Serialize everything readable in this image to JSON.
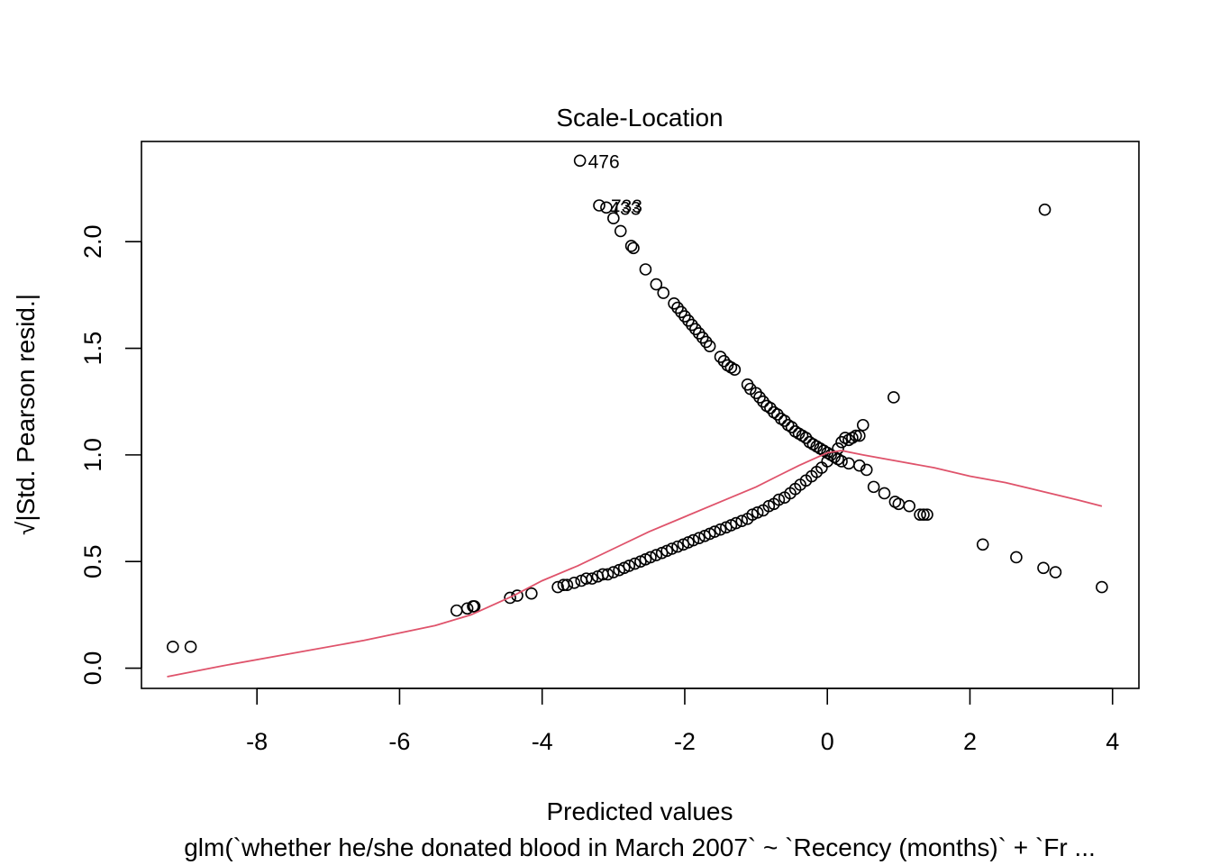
{
  "chart_data": {
    "type": "scatter",
    "title": "Scale-Location",
    "xlabel": "Predicted values",
    "ylabel": "√|Std. Pearson resid.|",
    "sub_caption": "glm(`whether he/she donated blood in March 2007` ~ `Recency (months)` + `Fr ...",
    "xlim": [
      -9.62,
      4.37
    ],
    "ylim": [
      -0.095,
      2.47
    ],
    "x_ticks": [
      -8,
      -6,
      -4,
      -2,
      0,
      2,
      4
    ],
    "x_tick_labels": [
      "-8",
      "-6",
      "-4",
      "-2",
      "0",
      "2",
      "4"
    ],
    "y_ticks": [
      0.0,
      0.5,
      1.0,
      1.5,
      2.0
    ],
    "y_tick_labels": [
      "0.0",
      "0.5",
      "1.0",
      "1.5",
      "2.0"
    ],
    "grid": false,
    "smooth_color": "#DF536B",
    "point_labels": [
      {
        "text": "476",
        "x": -3.47,
        "y": 2.38
      },
      {
        "text": "433",
        "x": -3.17,
        "y": 2.16
      },
      {
        "text": "733",
        "x": -3.15,
        "y": 2.17
      }
    ],
    "series": [
      {
        "points": [
          [
            -9.18,
            0.1
          ],
          [
            -8.93,
            0.1
          ],
          [
            -5.2,
            0.27
          ],
          [
            -5.05,
            0.28
          ],
          [
            -4.97,
            0.29
          ],
          [
            -4.95,
            0.29
          ],
          [
            -4.45,
            0.33
          ],
          [
            -4.35,
            0.34
          ],
          [
            -4.15,
            0.35
          ],
          [
            -3.78,
            0.38
          ],
          [
            -3.7,
            0.39
          ],
          [
            -3.65,
            0.39
          ],
          [
            -3.55,
            0.4
          ],
          [
            -3.45,
            0.41
          ],
          [
            -3.38,
            0.42
          ],
          [
            -3.3,
            0.42
          ],
          [
            -3.22,
            0.43
          ],
          [
            -3.15,
            0.44
          ],
          [
            -3.08,
            0.44
          ],
          [
            -3.0,
            0.45
          ],
          [
            -2.92,
            0.46
          ],
          [
            -2.85,
            0.47
          ],
          [
            -2.78,
            0.48
          ],
          [
            -2.7,
            0.49
          ],
          [
            -2.62,
            0.5
          ],
          [
            -2.55,
            0.51
          ],
          [
            -2.48,
            0.52
          ],
          [
            -2.4,
            0.53
          ],
          [
            -2.32,
            0.54
          ],
          [
            -2.25,
            0.55
          ],
          [
            -2.18,
            0.56
          ],
          [
            -2.1,
            0.57
          ],
          [
            -2.02,
            0.58
          ],
          [
            -1.95,
            0.59
          ],
          [
            -1.88,
            0.6
          ],
          [
            -1.8,
            0.61
          ],
          [
            -1.72,
            0.62
          ],
          [
            -1.65,
            0.63
          ],
          [
            -1.58,
            0.64
          ],
          [
            -1.5,
            0.65
          ],
          [
            -1.42,
            0.66
          ],
          [
            -1.35,
            0.67
          ],
          [
            -1.28,
            0.68
          ],
          [
            -1.2,
            0.69
          ],
          [
            -1.12,
            0.7
          ],
          [
            -1.05,
            0.72
          ],
          [
            -0.98,
            0.73
          ],
          [
            -0.9,
            0.74
          ],
          [
            -0.82,
            0.76
          ],
          [
            -0.75,
            0.77
          ],
          [
            -0.68,
            0.79
          ],
          [
            -0.6,
            0.8
          ],
          [
            -0.52,
            0.82
          ],
          [
            -0.45,
            0.84
          ],
          [
            -0.38,
            0.86
          ],
          [
            -0.3,
            0.88
          ],
          [
            -0.22,
            0.9
          ],
          [
            -0.15,
            0.92
          ],
          [
            -0.08,
            0.94
          ],
          [
            0.0,
            0.97
          ],
          [
            -3.2,
            2.17
          ],
          [
            -3.1,
            2.16
          ],
          [
            -3.0,
            2.11
          ],
          [
            -2.9,
            2.05
          ],
          [
            -2.75,
            1.98
          ],
          [
            -2.72,
            1.97
          ],
          [
            -2.55,
            1.87
          ],
          [
            -2.4,
            1.8
          ],
          [
            -2.3,
            1.76
          ],
          [
            -2.15,
            1.71
          ],
          [
            -2.1,
            1.69
          ],
          [
            -2.05,
            1.67
          ],
          [
            -2.0,
            1.65
          ],
          [
            -1.95,
            1.63
          ],
          [
            -1.9,
            1.61
          ],
          [
            -1.85,
            1.59
          ],
          [
            -1.8,
            1.57
          ],
          [
            -1.75,
            1.55
          ],
          [
            -1.7,
            1.53
          ],
          [
            -1.65,
            1.51
          ],
          [
            -1.5,
            1.46
          ],
          [
            -1.45,
            1.44
          ],
          [
            -1.4,
            1.42
          ],
          [
            -1.35,
            1.41
          ],
          [
            -1.3,
            1.4
          ],
          [
            -1.12,
            1.33
          ],
          [
            -1.08,
            1.31
          ],
          [
            -1.0,
            1.29
          ],
          [
            -0.95,
            1.27
          ],
          [
            -0.9,
            1.25
          ],
          [
            -0.85,
            1.23
          ],
          [
            -0.8,
            1.22
          ],
          [
            -0.75,
            1.2
          ],
          [
            -0.7,
            1.19
          ],
          [
            -0.65,
            1.17
          ],
          [
            -0.6,
            1.16
          ],
          [
            -0.55,
            1.14
          ],
          [
            -0.5,
            1.13
          ],
          [
            -0.45,
            1.11
          ],
          [
            -0.4,
            1.1
          ],
          [
            -0.35,
            1.09
          ],
          [
            -0.3,
            1.08
          ],
          [
            -0.25,
            1.06
          ],
          [
            -0.2,
            1.05
          ],
          [
            -0.15,
            1.04
          ],
          [
            -0.1,
            1.03
          ],
          [
            -0.05,
            1.02
          ],
          [
            0.0,
            1.01
          ],
          [
            0.05,
            1.0
          ],
          [
            0.1,
            0.99
          ],
          [
            0.15,
            0.98
          ],
          [
            0.2,
            0.97
          ],
          [
            0.3,
            0.96
          ],
          [
            0.45,
            0.95
          ],
          [
            0.55,
            0.93
          ],
          [
            0.15,
            1.03
          ],
          [
            0.2,
            1.06
          ],
          [
            0.25,
            1.08
          ],
          [
            0.3,
            1.07
          ],
          [
            0.35,
            1.08
          ],
          [
            0.4,
            1.09
          ],
          [
            0.45,
            1.09
          ],
          [
            0.5,
            1.14
          ],
          [
            0.65,
            0.85
          ],
          [
            0.8,
            0.82
          ],
          [
            0.95,
            0.78
          ],
          [
            1.0,
            0.77
          ],
          [
            1.15,
            0.76
          ],
          [
            1.3,
            0.72
          ],
          [
            1.35,
            0.72
          ],
          [
            1.4,
            0.72
          ],
          [
            0.93,
            1.27
          ],
          [
            2.18,
            0.58
          ],
          [
            2.65,
            0.52
          ],
          [
            3.03,
            0.47
          ],
          [
            3.2,
            0.45
          ],
          [
            3.05,
            2.15
          ],
          [
            3.85,
            0.38
          ],
          [
            -3.47,
            2.38
          ]
        ]
      }
    ],
    "smooth_line": [
      [
        -9.26,
        -0.04
      ],
      [
        -8.5,
        0.01
      ],
      [
        -7.5,
        0.07
      ],
      [
        -6.5,
        0.13
      ],
      [
        -5.5,
        0.2
      ],
      [
        -5.0,
        0.25
      ],
      [
        -4.8,
        0.28
      ],
      [
        -4.4,
        0.34
      ],
      [
        -4.0,
        0.41
      ],
      [
        -3.5,
        0.48
      ],
      [
        -3.0,
        0.56
      ],
      [
        -2.5,
        0.64
      ],
      [
        -2.0,
        0.71
      ],
      [
        -1.5,
        0.78
      ],
      [
        -1.0,
        0.85
      ],
      [
        -0.7,
        0.9
      ],
      [
        -0.4,
        0.95
      ],
      [
        -0.2,
        0.98
      ],
      [
        0.0,
        1.01
      ],
      [
        0.2,
        1.02
      ],
      [
        0.5,
        1.0
      ],
      [
        1.0,
        0.97
      ],
      [
        1.5,
        0.94
      ],
      [
        2.0,
        0.9
      ],
      [
        2.5,
        0.87
      ],
      [
        3.0,
        0.83
      ],
      [
        3.5,
        0.79
      ],
      [
        3.85,
        0.76
      ]
    ]
  }
}
